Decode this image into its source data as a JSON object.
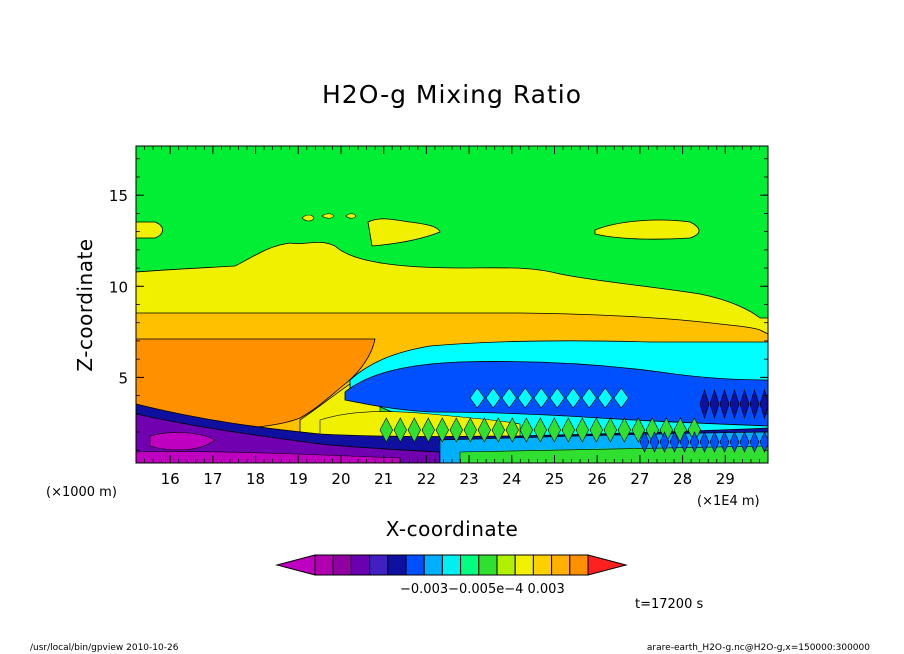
{
  "chart_data": {
    "type": "heatmap",
    "title": "H2O-g Mixing Ratio",
    "xlabel": "X-coordinate",
    "ylabel": "Z-coordinate",
    "x_unit": "(×1E4 m)",
    "y_unit": "(×1000 m)",
    "x_ticks": [
      "16",
      "17",
      "18",
      "19",
      "20",
      "21",
      "22",
      "23",
      "24",
      "25",
      "26",
      "27",
      "28",
      "29"
    ],
    "y_ticks": [
      "5",
      "10",
      "15"
    ],
    "xlim": [
      15.2,
      30.0
    ],
    "ylim": [
      0.3,
      17.7
    ],
    "colorbar": {
      "colors": [
        "#c000c0",
        "#b000b0",
        "#9000a0",
        "#6a00b0",
        "#4020c0",
        "#1010a0",
        "#0050ff",
        "#00b0ff",
        "#00f0f0",
        "#00ff80",
        "#30e030",
        "#b0f000",
        "#f0f000",
        "#ffd000",
        "#ffb000",
        "#ff9000",
        "#ff2020"
      ],
      "labels": [
        "-0.003",
        "-0.005e-4",
        "0.003"
      ],
      "label_text": "−0.003−0.005e−4   0.003"
    },
    "bands": [
      {
        "name": "background",
        "color": "#00ee33"
      },
      {
        "name": "upper-yellow",
        "color": "#f0f000",
        "z": [
          8.5,
          10.7
        ]
      },
      {
        "name": "orange-light",
        "color": "#ffc000",
        "z": [
          7.2,
          8.5
        ]
      },
      {
        "name": "orange-core",
        "color": "#ff9000",
        "z": [
          3.5,
          7.2
        ]
      },
      {
        "name": "cyan-layer",
        "color": "#00ffff"
      },
      {
        "name": "blue-layer",
        "color": "#0050ff"
      },
      {
        "name": "navy-core",
        "color": "#1010a0"
      },
      {
        "name": "purple-base",
        "color": "#7000b0"
      },
      {
        "name": "magenta-base",
        "color": "#c000c0"
      }
    ],
    "time_label": "t=17200 s"
  },
  "footer": {
    "left": "/usr/local/bin/gpview  2010-10-26",
    "right": "arare-earth_H2O-g.nc@H2O-g,x=150000:300000"
  }
}
